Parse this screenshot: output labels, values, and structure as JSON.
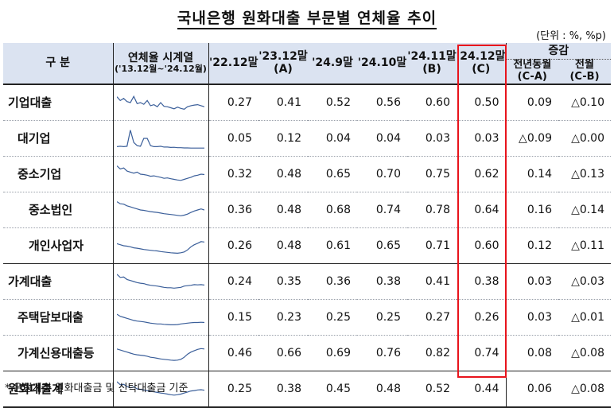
{
  "title": "국내은행 원화대출 부문별 연체율 추이",
  "unit": "(단위 : %, %p)",
  "header": {
    "category": "구    분",
    "series_title": "연체율 시계열",
    "series_range": "('13.12월~'24.12월)",
    "cols": [
      "'22.12말",
      "'23.12말",
      "'24.9말",
      "'24.10말",
      "'24.11말",
      "'24.12말"
    ],
    "col_sub": [
      "",
      "(A)",
      "",
      "",
      "(B)",
      "(C)"
    ],
    "change": "증감",
    "change_cols": [
      "전년동월",
      "전월"
    ],
    "change_sub": [
      "(C-A)",
      "(C-B)"
    ]
  },
  "rows": [
    {
      "label": "기업대출",
      "level": 0,
      "values": [
        "0.27",
        "0.41",
        "0.52",
        "0.56",
        "0.60",
        "0.50"
      ],
      "change": [
        "0.09",
        "△0.10"
      ]
    },
    {
      "label": "대기업",
      "level": 1,
      "values": [
        "0.05",
        "0.12",
        "0.04",
        "0.04",
        "0.03",
        "0.03"
      ],
      "change": [
        "△0.09",
        "△0.00"
      ]
    },
    {
      "label": "중소기업",
      "level": 1,
      "values": [
        "0.32",
        "0.48",
        "0.65",
        "0.70",
        "0.75",
        "0.62"
      ],
      "change": [
        "0.14",
        "△0.13"
      ]
    },
    {
      "label": "중소법인",
      "level": 2,
      "values": [
        "0.36",
        "0.48",
        "0.68",
        "0.74",
        "0.78",
        "0.64"
      ],
      "change": [
        "0.16",
        "△0.14"
      ]
    },
    {
      "label": "개인사업자",
      "level": 2,
      "values": [
        "0.26",
        "0.48",
        "0.61",
        "0.65",
        "0.71",
        "0.60"
      ],
      "change": [
        "0.12",
        "△0.11"
      ]
    },
    {
      "label": "가계대출",
      "level": 0,
      "values": [
        "0.24",
        "0.35",
        "0.36",
        "0.38",
        "0.41",
        "0.38"
      ],
      "change": [
        "0.03",
        "△0.03"
      ]
    },
    {
      "label": "주택담보대출",
      "level": 1,
      "values": [
        "0.15",
        "0.23",
        "0.25",
        "0.25",
        "0.27",
        "0.26"
      ],
      "change": [
        "0.03",
        "△0.01"
      ]
    },
    {
      "label": "가계신용대출등",
      "level": 1,
      "values": [
        "0.46",
        "0.66",
        "0.69",
        "0.76",
        "0.82",
        "0.74"
      ],
      "change": [
        "0.08",
        "△0.08"
      ]
    },
    {
      "label": "원화대출계",
      "level": 0,
      "values": [
        "0.25",
        "0.38",
        "0.45",
        "0.48",
        "0.52",
        "0.44"
      ],
      "change": [
        "0.06",
        "△0.08"
      ]
    }
  ],
  "sparklines": [
    [
      0.78,
      0.6,
      0.7,
      0.55,
      0.5,
      0.8,
      0.45,
      0.5,
      0.42,
      0.6,
      0.35,
      0.4,
      0.3,
      0.5,
      0.32,
      0.3,
      0.25,
      0.2,
      0.28,
      0.22,
      0.18,
      0.3,
      0.35,
      0.38,
      0.4,
      0.35,
      0.3
    ],
    [
      0.1,
      0.12,
      0.1,
      0.12,
      0.9,
      0.3,
      0.15,
      0.12,
      0.5,
      0.5,
      0.15,
      0.1,
      0.1,
      0.12,
      0.08,
      0.08,
      0.06,
      0.07,
      0.05,
      0.05,
      0.04,
      0.04,
      0.03,
      0.03,
      0.03,
      0.03,
      0.03
    ],
    [
      0.9,
      0.75,
      0.8,
      0.65,
      0.6,
      0.55,
      0.6,
      0.5,
      0.48,
      0.45,
      0.4,
      0.42,
      0.38,
      0.35,
      0.3,
      0.32,
      0.28,
      0.25,
      0.22,
      0.2,
      0.25,
      0.3,
      0.35,
      0.42,
      0.45,
      0.5,
      0.48
    ],
    [
      0.9,
      0.8,
      0.78,
      0.7,
      0.65,
      0.6,
      0.55,
      0.5,
      0.48,
      0.45,
      0.42,
      0.4,
      0.38,
      0.35,
      0.32,
      0.3,
      0.28,
      0.26,
      0.24,
      0.22,
      0.25,
      0.3,
      0.38,
      0.45,
      0.5,
      0.55,
      0.5
    ],
    [
      0.6,
      0.55,
      0.5,
      0.48,
      0.45,
      0.4,
      0.38,
      0.35,
      0.32,
      0.3,
      0.28,
      0.26,
      0.25,
      0.22,
      0.2,
      0.18,
      0.16,
      0.15,
      0.14,
      0.16,
      0.2,
      0.3,
      0.45,
      0.55,
      0.62,
      0.7,
      0.68
    ],
    [
      0.85,
      0.7,
      0.72,
      0.6,
      0.55,
      0.5,
      0.45,
      0.42,
      0.4,
      0.35,
      0.32,
      0.3,
      0.28,
      0.25,
      0.22,
      0.2,
      0.2,
      0.18,
      0.2,
      0.22,
      0.28,
      0.3,
      0.32,
      0.35,
      0.34,
      0.35,
      0.33
    ],
    [
      0.65,
      0.55,
      0.5,
      0.45,
      0.4,
      0.35,
      0.32,
      0.3,
      0.28,
      0.25,
      0.22,
      0.2,
      0.18,
      0.18,
      0.16,
      0.15,
      0.14,
      0.14,
      0.15,
      0.18,
      0.2,
      0.22,
      0.24,
      0.25,
      0.25,
      0.26,
      0.25
    ],
    [
      0.7,
      0.65,
      0.6,
      0.55,
      0.5,
      0.45,
      0.42,
      0.4,
      0.38,
      0.35,
      0.3,
      0.28,
      0.25,
      0.22,
      0.2,
      0.18,
      0.16,
      0.15,
      0.16,
      0.2,
      0.3,
      0.45,
      0.55,
      0.62,
      0.68,
      0.72,
      0.7
    ],
    [
      0.85,
      0.7,
      0.72,
      0.62,
      0.55,
      0.6,
      0.5,
      0.48,
      0.45,
      0.42,
      0.38,
      0.36,
      0.33,
      0.3,
      0.28,
      0.25,
      0.22,
      0.2,
      0.22,
      0.25,
      0.3,
      0.35,
      0.4,
      0.42,
      0.45,
      0.46,
      0.44
    ]
  ],
  "footnote": "* 은행계정 원화대출금 및 신탁대출금 기준",
  "colors": {
    "header_bg": "#dbe3f1",
    "highlight": "#e8141c",
    "spark": "#3b5f9a"
  }
}
